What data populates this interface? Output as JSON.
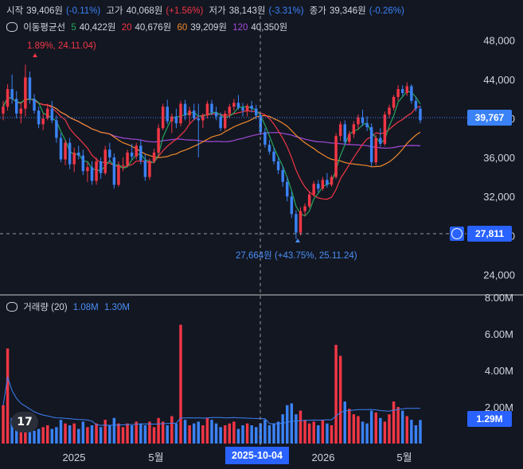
{
  "ohlc": {
    "open_label": "시작",
    "open_value": "39,406원",
    "open_change": "(-0.11%)",
    "high_label": "고가",
    "high_value": "40,068원",
    "high_change": "(+1.56%)",
    "low_label": "저가",
    "low_value": "38,143원",
    "low_change": "(-3.31%)",
    "close_label": "종가",
    "close_value": "39,346원",
    "close_change": "(-0.26%)"
  },
  "ma": {
    "title": "이동평균선",
    "p5": "5",
    "v5": "40,422원",
    "p20": "20",
    "v20": "40,676원",
    "p60": "60",
    "v60": "39,209원",
    "p120": "120",
    "v120": "40,350원"
  },
  "annotations": {
    "high_note": "1.89%, 24.11.04)",
    "low_note": "27,664원 (+43.75%, 25.11.24)"
  },
  "volume_header": {
    "label": "거래량 (20)",
    "v1": "1.08M",
    "v2": "1.30M"
  },
  "price_tags": {
    "last": "39,767",
    "crosshair": "27,811",
    "volume_last": "1.29M"
  },
  "crosshair_date": "2025-10-04",
  "colors": {
    "up": "#f23645",
    "down": "#3b82f6",
    "ma5": "#26a65b",
    "ma20": "#f23645",
    "ma60": "#f0892b",
    "ma120": "#a34ad9",
    "background": "#131722"
  },
  "chart_data": {
    "type": "candlestick",
    "price_axis_ticks": [
      "48,000",
      "44,000",
      "40,000",
      "36,000",
      "32,000",
      "28,000",
      "24,000"
    ],
    "price_axis_values": [
      48000,
      44000,
      40000,
      36000,
      32000,
      28000,
      24000
    ],
    "volume_axis_ticks": [
      "8.00M",
      "6.00M",
      "4.00M",
      "2.00M"
    ],
    "volume_axis_values": [
      8000000,
      6000000,
      4000000,
      2000000
    ],
    "x_axis_labels": [
      "2025",
      "5월",
      "2026",
      "5월"
    ],
    "ylim": [
      22000,
      50500
    ],
    "candles": [
      [
        40500,
        41800,
        39800,
        41200
      ],
      [
        41200,
        43500,
        40800,
        43000
      ],
      [
        43000,
        44500,
        41500,
        42000
      ],
      [
        42000,
        42800,
        40000,
        40500
      ],
      [
        40500,
        41500,
        39500,
        41000
      ],
      [
        41000,
        45500,
        40200,
        44200
      ],
      [
        44200,
        44800,
        41500,
        42000
      ],
      [
        42000,
        42500,
        40500,
        40800
      ],
      [
        40800,
        41200,
        39000,
        39400
      ],
      [
        39400,
        40500,
        38800,
        40000
      ],
      [
        40000,
        41500,
        39800,
        41000
      ],
      [
        41000,
        41800,
        39500,
        39800
      ],
      [
        39800,
        40300,
        37500,
        38000
      ],
      [
        38000,
        38500,
        35500,
        35800
      ],
      [
        35800,
        37800,
        35200,
        37500
      ],
      [
        37500,
        38000,
        34800,
        35300
      ],
      [
        35300,
        37000,
        34500,
        36500
      ],
      [
        36500,
        37200,
        35800,
        36200
      ],
      [
        36200,
        36800,
        34200,
        34600
      ],
      [
        34600,
        35500,
        33500,
        35000
      ],
      [
        35000,
        35600,
        33200,
        33600
      ],
      [
        33600,
        36000,
        33200,
        35600
      ],
      [
        35600,
        36000,
        33800,
        34400
      ],
      [
        34400,
        37200,
        34200,
        36800
      ],
      [
        36800,
        37500,
        35500,
        36000
      ],
      [
        36000,
        36400,
        32800,
        33200
      ],
      [
        33200,
        35600,
        33000,
        35200
      ],
      [
        35200,
        36000,
        34600,
        35200
      ],
      [
        35200,
        36800,
        35000,
        36500
      ],
      [
        36500,
        37400,
        35800,
        36100
      ],
      [
        36100,
        37500,
        35800,
        37200
      ],
      [
        37200,
        37800,
        35300,
        35700
      ],
      [
        35700,
        36300,
        33600,
        34000
      ],
      [
        34000,
        35900,
        33700,
        35600
      ],
      [
        35600,
        36900,
        35400,
        36500
      ],
      [
        36500,
        39400,
        36200,
        39000
      ],
      [
        39000,
        41500,
        38800,
        41200
      ],
      [
        41200,
        41900,
        39400,
        39700
      ],
      [
        39700,
        40500,
        38500,
        40200
      ],
      [
        40200,
        41000,
        39000,
        39500
      ],
      [
        39500,
        41800,
        39200,
        41500
      ],
      [
        41500,
        41900,
        39800,
        40300
      ],
      [
        40300,
        41200,
        39500,
        40800
      ],
      [
        40800,
        41500,
        39800,
        40000
      ],
      [
        40000,
        41500,
        36000,
        39800
      ],
      [
        39800,
        40500,
        39000,
        40300
      ],
      [
        40300,
        41800,
        40000,
        41500
      ],
      [
        41500,
        41900,
        40300,
        40600
      ],
      [
        40600,
        41200,
        39800,
        40200
      ],
      [
        40200,
        40600,
        38700,
        39000
      ],
      [
        39000,
        40800,
        38800,
        40500
      ],
      [
        40500,
        41500,
        40000,
        41200
      ],
      [
        41200,
        42000,
        40800,
        41600
      ],
      [
        41600,
        42400,
        40900,
        41100
      ],
      [
        41100,
        41600,
        40200,
        40800
      ],
      [
        40800,
        41500,
        40200,
        41300
      ],
      [
        41300,
        41800,
        40600,
        41000
      ],
      [
        41000,
        41400,
        39900,
        40300
      ],
      [
        40300,
        40600,
        38300,
        38600
      ],
      [
        38600,
        39000,
        37000,
        37300
      ],
      [
        37300,
        37800,
        36300,
        36600
      ],
      [
        36600,
        37000,
        35300,
        35600
      ],
      [
        35600,
        36000,
        34300,
        34700
      ],
      [
        34700,
        35100,
        33000,
        33500
      ],
      [
        33500,
        34000,
        31500,
        32000
      ],
      [
        32000,
        32500,
        29800,
        30200
      ],
      [
        30200,
        30600,
        27664,
        28300
      ],
      [
        28300,
        30900,
        28000,
        30500
      ],
      [
        30500,
        31300,
        30000,
        31000
      ],
      [
        31000,
        32500,
        30800,
        32200
      ],
      [
        32200,
        33600,
        32000,
        33300
      ],
      [
        33300,
        33700,
        32400,
        32800
      ],
      [
        32800,
        34000,
        32600,
        33700
      ],
      [
        33700,
        34400,
        32900,
        33200
      ],
      [
        33200,
        34200,
        33000,
        34000
      ],
      [
        34000,
        38500,
        33800,
        38200
      ],
      [
        38200,
        39700,
        37700,
        39400
      ],
      [
        39400,
        39800,
        37300,
        37600
      ],
      [
        37600,
        38700,
        37300,
        38400
      ],
      [
        38400,
        39700,
        38000,
        39400
      ],
      [
        39400,
        40400,
        38900,
        40100
      ],
      [
        40100,
        40900,
        39200,
        39500
      ],
      [
        39500,
        40200,
        38700,
        39100
      ],
      [
        39100,
        39500,
        35100,
        35500
      ],
      [
        35500,
        38300,
        35200,
        38000
      ],
      [
        38000,
        39000,
        37100,
        37400
      ],
      [
        37400,
        40700,
        37200,
        40400
      ],
      [
        40400,
        41400,
        40000,
        41100
      ],
      [
        41100,
        42400,
        40800,
        42200
      ],
      [
        42200,
        43400,
        41800,
        43000
      ],
      [
        43000,
        43400,
        42300,
        42600
      ],
      [
        42600,
        43700,
        42300,
        43300
      ],
      [
        43300,
        43500,
        41500,
        41800
      ],
      [
        41800,
        42200,
        40700,
        41000
      ],
      [
        41000,
        41300,
        39500,
        39800
      ]
    ],
    "volumes": [
      2.1,
      5.2,
      1.4,
      1.2,
      1.1,
      1.3,
      0.9,
      0.7,
      0.8,
      0.9,
      1.0,
      0.8,
      0.9,
      1.3,
      1.1,
      1.0,
      1.1,
      0.8,
      1.2,
      0.9,
      1.0,
      1.1,
      0.9,
      1.3,
      1.0,
      1.4,
      1.1,
      0.9,
      1.1,
      1.0,
      1.2,
      1.1,
      1.0,
      1.2,
      0.9,
      1.4,
      1.2,
      1.0,
      1.5,
      1.1,
      6.5,
      1.3,
      1.0,
      1.1,
      1.2,
      1.0,
      1.4,
      1.3,
      1.1,
      0.9,
      1.0,
      1.1,
      1.2,
      0.8,
      1.0,
      1.1,
      1.0,
      0.9,
      1.1,
      1.3,
      1.0,
      1.1,
      1.2,
      1.6,
      2.1,
      2.2,
      1.6,
      1.8,
      1.3,
      1.1,
      1.2,
      1.0,
      1.3,
      1.1,
      1.0,
      5.4,
      4.8,
      2.3,
      1.9,
      1.6,
      1.5,
      1.2,
      1.1,
      1.8,
      1.7,
      1.4,
      1.2,
      1.6,
      2.3,
      2.0,
      1.8,
      1.5,
      1.3,
      1.0,
      1.29
    ]
  }
}
